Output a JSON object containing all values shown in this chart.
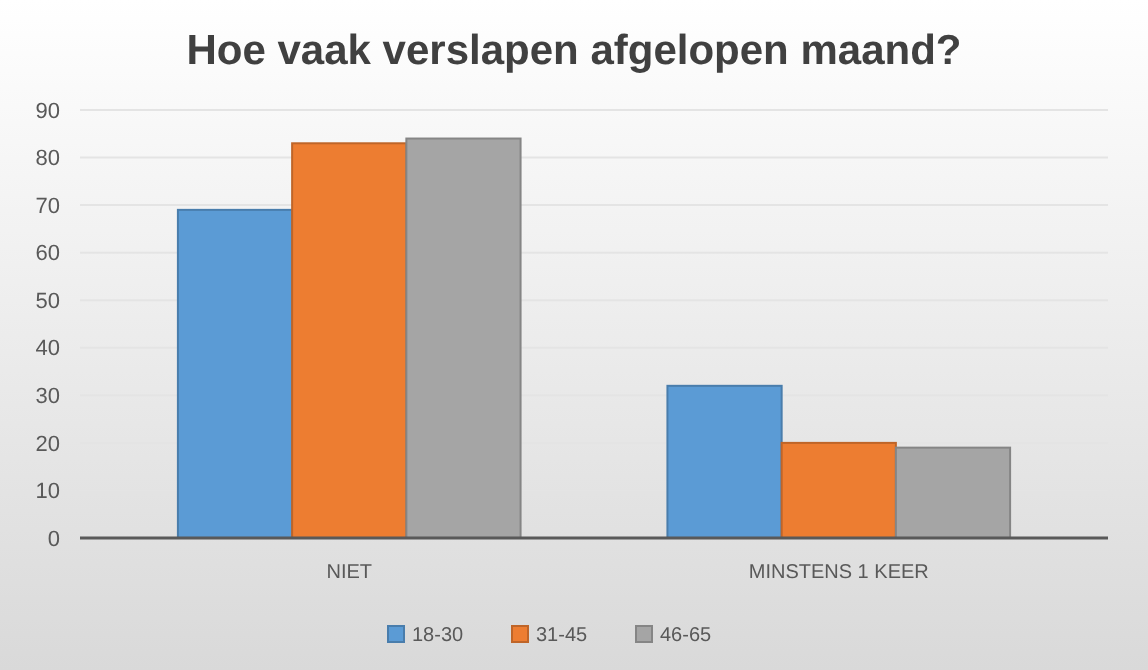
{
  "chart_data": {
    "type": "bar",
    "title": "Hoe vaak verslapen afgelopen maand?",
    "categories": [
      "NIET",
      "MINSTENS 1 KEER"
    ],
    "series": [
      {
        "name": "18-30",
        "color": "#5b9bd5",
        "values": [
          69,
          32
        ]
      },
      {
        "name": "31-45",
        "color": "#ed7d31",
        "values": [
          83,
          20
        ]
      },
      {
        "name": "46-65",
        "color": "#a5a5a5",
        "values": [
          84,
          19
        ]
      }
    ],
    "ylim": [
      0,
      90
    ],
    "yticks": [
      0,
      10,
      20,
      30,
      40,
      50,
      60,
      70,
      80,
      90
    ],
    "grid": "y",
    "legend": "bottom"
  }
}
